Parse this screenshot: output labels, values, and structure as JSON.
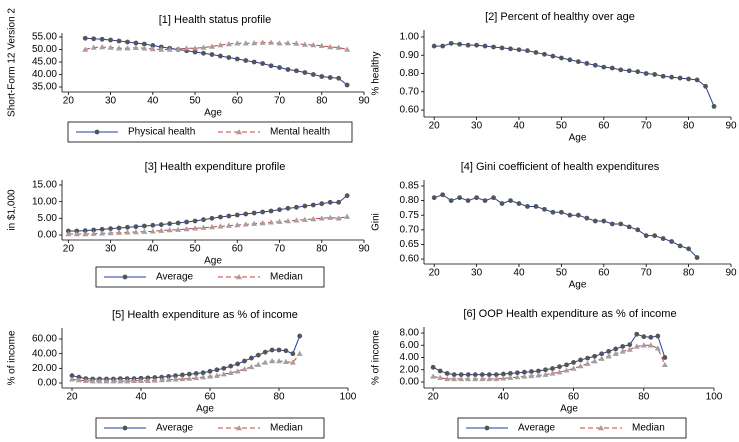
{
  "chart_data": [
    {
      "type": "line",
      "title": "[1] Health status profile",
      "xlabel": "Age",
      "ylabel": "Short-Form 12 Version 2",
      "xlim": [
        18.5,
        90
      ],
      "ylim": [
        33,
        56.6
      ],
      "xticks": [
        20,
        30,
        40,
        50,
        60,
        70,
        80,
        90
      ],
      "yticks": [
        {
          "value": 35,
          "label": "35.00"
        },
        {
          "value": 40,
          "label": "40.00"
        },
        {
          "value": 45,
          "label": "45.00"
        },
        {
          "value": 50,
          "label": "50.00"
        },
        {
          "value": 55,
          "label": "55.00"
        }
      ],
      "x": [
        24,
        26,
        28,
        30,
        32,
        34,
        36,
        38,
        40,
        42,
        44,
        46,
        48,
        50,
        52,
        54,
        56,
        58,
        60,
        62,
        64,
        66,
        68,
        70,
        72,
        74,
        76,
        78,
        80,
        82,
        84,
        86
      ],
      "series": [
        {
          "name": "Physical health",
          "color": "#1f3fa8",
          "marker": "circle",
          "marker_color": "#555555",
          "dash": false,
          "values": [
            54.5,
            54.3,
            54.1,
            53.8,
            53.4,
            53.0,
            52.6,
            52.2,
            51.6,
            51.0,
            50.5,
            50.0,
            49.5,
            49.0,
            48.5,
            48.0,
            47.4,
            46.8,
            46.2,
            45.6,
            45.0,
            44.4,
            43.5,
            42.8,
            42.0,
            41.5,
            40.8,
            40.0,
            39.2,
            38.8,
            38.5,
            35.8
          ]
        },
        {
          "name": "Mental health",
          "color": "#d23c3c",
          "marker": "triangle",
          "marker_color": "#a0a0a0",
          "dash": true,
          "values": [
            50.0,
            50.8,
            51.0,
            50.8,
            50.5,
            50.5,
            50.7,
            50.5,
            50.2,
            50.0,
            50.0,
            50.2,
            50.5,
            50.5,
            50.8,
            51.2,
            51.8,
            52.2,
            52.5,
            52.5,
            52.6,
            52.8,
            52.8,
            52.5,
            52.6,
            52.4,
            52.0,
            51.8,
            51.5,
            51.0,
            50.8,
            50.0
          ]
        }
      ]
    },
    {
      "type": "line",
      "title": "[2] Percent of healthy over age",
      "xlabel": "Age",
      "ylabel": "% healthy",
      "xlim": [
        17.6,
        90
      ],
      "ylim": [
        0.562,
        1.038
      ],
      "xticks": [
        20,
        30,
        40,
        50,
        60,
        70,
        80,
        90
      ],
      "yticks": [
        {
          "value": 0.6,
          "label": "0.60"
        },
        {
          "value": 0.7,
          "label": "0.70"
        },
        {
          "value": 0.8,
          "label": "0.80"
        },
        {
          "value": 0.9,
          "label": "0.90"
        },
        {
          "value": 1,
          "label": "1.00"
        }
      ],
      "x": [
        20,
        22,
        24,
        26,
        28,
        30,
        32,
        34,
        36,
        38,
        40,
        42,
        44,
        46,
        48,
        50,
        52,
        54,
        56,
        58,
        60,
        62,
        64,
        66,
        68,
        70,
        72,
        74,
        76,
        78,
        80,
        82,
        84,
        86
      ],
      "color": "#1f3fa8",
      "marker": "circle",
      "marker_color": "#555555",
      "values": [
        0.95,
        0.95,
        0.965,
        0.96,
        0.955,
        0.955,
        0.95,
        0.945,
        0.94,
        0.935,
        0.93,
        0.925,
        0.915,
        0.905,
        0.895,
        0.885,
        0.875,
        0.865,
        0.855,
        0.845,
        0.835,
        0.83,
        0.82,
        0.815,
        0.81,
        0.8,
        0.795,
        0.785,
        0.78,
        0.775,
        0.77,
        0.765,
        0.73,
        0.62
      ]
    },
    {
      "type": "line",
      "title": "[3] Health expenditure profile",
      "xlabel": "Age",
      "ylabel": "in $1,000",
      "xlim": [
        18.5,
        90
      ],
      "ylim": [
        -1.5,
        16.5
      ],
      "xticks": [
        20,
        30,
        40,
        50,
        60,
        70,
        80,
        90
      ],
      "yticks": [
        {
          "value": 0,
          "label": "0.00"
        },
        {
          "value": 5,
          "label": "5.00"
        },
        {
          "value": 10,
          "label": "10.00"
        },
        {
          "value": 15,
          "label": "15.00"
        }
      ],
      "x": [
        20,
        22,
        24,
        26,
        28,
        30,
        32,
        34,
        36,
        38,
        40,
        42,
        44,
        46,
        48,
        50,
        52,
        54,
        56,
        58,
        60,
        62,
        64,
        66,
        68,
        70,
        72,
        74,
        76,
        78,
        80,
        82,
        84,
        86
      ],
      "series": [
        {
          "name": "Average",
          "color": "#1f3fa8",
          "marker": "circle",
          "marker_color": "#555555",
          "dash": false,
          "values": [
            1.2,
            1.2,
            1.3,
            1.5,
            1.7,
            1.9,
            2.1,
            2.3,
            2.5,
            2.7,
            2.9,
            3.1,
            3.4,
            3.6,
            3.9,
            4.2,
            4.6,
            5.0,
            5.4,
            5.7,
            6.0,
            6.3,
            6.6,
            6.9,
            7.2,
            7.6,
            8.0,
            8.3,
            8.7,
            9.0,
            9.4,
            9.8,
            9.8,
            11.8
          ]
        },
        {
          "name": "Median",
          "color": "#d23c3c",
          "marker": "triangle",
          "marker_color": "#a0a0a0",
          "dash": true,
          "values": [
            0.3,
            0.3,
            0.3,
            0.4,
            0.5,
            0.6,
            0.7,
            0.8,
            0.9,
            1.0,
            1.1,
            1.3,
            1.5,
            1.6,
            1.8,
            2.0,
            2.2,
            2.4,
            2.6,
            2.8,
            3.0,
            3.2,
            3.4,
            3.6,
            3.8,
            4.0,
            4.2,
            4.4,
            4.6,
            4.8,
            5.0,
            5.2,
            5.0,
            5.5
          ]
        }
      ]
    },
    {
      "type": "line",
      "title": "[4] Gini coefficient of health expenditures",
      "xlabel": "Age",
      "ylabel": "Gini",
      "xlim": [
        17.6,
        90
      ],
      "ylim": [
        0.583,
        0.8705
      ],
      "xticks": [
        20,
        30,
        40,
        50,
        60,
        70,
        80,
        90
      ],
      "yticks": [
        {
          "value": 0.6,
          "label": "0.60"
        },
        {
          "value": 0.65,
          "label": "0.65"
        },
        {
          "value": 0.7,
          "label": "0.70"
        },
        {
          "value": 0.75,
          "label": "0.75"
        },
        {
          "value": 0.8,
          "label": "0.80"
        },
        {
          "value": 0.85,
          "label": "0.85"
        }
      ],
      "x": [
        20,
        22,
        24,
        26,
        28,
        30,
        32,
        34,
        36,
        38,
        40,
        42,
        44,
        46,
        48,
        50,
        52,
        54,
        56,
        58,
        60,
        62,
        64,
        66,
        68,
        70,
        72,
        74,
        76,
        78,
        80,
        82
      ],
      "color": "#1f3fa8",
      "marker": "circle",
      "marker_color": "#555555",
      "values": [
        0.81,
        0.82,
        0.8,
        0.81,
        0.8,
        0.81,
        0.8,
        0.81,
        0.79,
        0.8,
        0.79,
        0.78,
        0.78,
        0.77,
        0.76,
        0.76,
        0.75,
        0.75,
        0.74,
        0.73,
        0.73,
        0.72,
        0.72,
        0.71,
        0.7,
        0.68,
        0.68,
        0.67,
        0.66,
        0.645,
        0.635,
        0.605
      ]
    },
    {
      "type": "line",
      "title": "[5] Health expenditure as % of income",
      "xlabel": "Age",
      "ylabel": "% of income",
      "xlim": [
        17.1,
        100
      ],
      "ylim": [
        -6.8,
        75
      ],
      "xticks": [
        20,
        40,
        60,
        80,
        100
      ],
      "yticks": [
        {
          "value": 0,
          "label": "0.00"
        },
        {
          "value": 20,
          "label": "20.00"
        },
        {
          "value": 40,
          "label": "40.00"
        },
        {
          "value": 60,
          "label": "60.00"
        }
      ],
      "x": [
        20,
        22,
        24,
        26,
        28,
        30,
        32,
        34,
        36,
        38,
        40,
        42,
        44,
        46,
        48,
        50,
        52,
        54,
        56,
        58,
        60,
        62,
        64,
        66,
        68,
        70,
        72,
        74,
        76,
        78,
        80,
        82,
        84,
        86
      ],
      "series": [
        {
          "name": "Average",
          "color": "#1f3fa8",
          "marker": "circle",
          "marker_color": "#555555",
          "dash": false,
          "values": [
            10,
            8,
            6,
            5.5,
            5.5,
            5.5,
            5.5,
            6,
            6,
            6,
            6.5,
            7,
            7.5,
            8,
            9,
            10,
            11,
            12,
            13,
            14,
            16,
            18,
            20,
            23,
            26,
            30,
            34,
            38,
            42,
            45,
            45,
            44,
            40,
            64
          ]
        },
        {
          "name": "Median",
          "color": "#d23c3c",
          "marker": "triangle",
          "marker_color": "#a0a0a0",
          "dash": true,
          "values": [
            5,
            4,
            3,
            2.5,
            2.5,
            2.5,
            2.5,
            2.5,
            2.5,
            3,
            3,
            3,
            3.5,
            4,
            4.5,
            5,
            5.5,
            6,
            7,
            8,
            9,
            10,
            12,
            14,
            16,
            19,
            22,
            25,
            28,
            30,
            30,
            29,
            28,
            40
          ]
        }
      ]
    },
    {
      "type": "line",
      "title": "[6] OOP Health expenditure as % of income",
      "xlabel": "Age",
      "ylabel": "% of income",
      "xlim": [
        17.4,
        100
      ],
      "ylim": [
        -0.98,
        8.98
      ],
      "xticks": [
        20,
        40,
        60,
        80,
        100
      ],
      "yticks": [
        {
          "value": 0,
          "label": "0.00"
        },
        {
          "value": 2,
          "label": "2.00"
        },
        {
          "value": 4,
          "label": "4.00"
        },
        {
          "value": 6,
          "label": "6.00"
        },
        {
          "value": 8,
          "label": "8.00"
        }
      ],
      "x": [
        20,
        22,
        24,
        26,
        28,
        30,
        32,
        34,
        36,
        38,
        40,
        42,
        44,
        46,
        48,
        50,
        52,
        54,
        56,
        58,
        60,
        62,
        64,
        66,
        68,
        70,
        72,
        74,
        76,
        78,
        80,
        82,
        84,
        86
      ],
      "series": [
        {
          "name": "Average",
          "color": "#1f3fa8",
          "marker": "circle",
          "marker_color": "#555555",
          "dash": false,
          "values": [
            2.4,
            1.8,
            1.4,
            1.2,
            1.2,
            1.2,
            1.2,
            1.2,
            1.2,
            1.2,
            1.3,
            1.4,
            1.5,
            1.6,
            1.7,
            1.8,
            2.0,
            2.2,
            2.5,
            2.8,
            3.2,
            3.6,
            3.9,
            4.2,
            4.6,
            5.0,
            5.4,
            5.8,
            6.1,
            7.8,
            7.4,
            7.3,
            7.5,
            4.0
          ]
        },
        {
          "name": "Median",
          "color": "#d23c3c",
          "marker": "triangle",
          "marker_color": "#a0a0a0",
          "dash": true,
          "values": [
            0.9,
            0.7,
            0.5,
            0.5,
            0.5,
            0.5,
            0.5,
            0.5,
            0.5,
            0.5,
            0.6,
            0.7,
            0.8,
            0.9,
            1.0,
            1.1,
            1.2,
            1.4,
            1.6,
            1.9,
            2.2,
            2.6,
            3.0,
            3.4,
            3.8,
            4.2,
            4.6,
            5.0,
            5.3,
            5.8,
            6.0,
            6.0,
            5.5,
            2.8
          ]
        }
      ]
    }
  ]
}
